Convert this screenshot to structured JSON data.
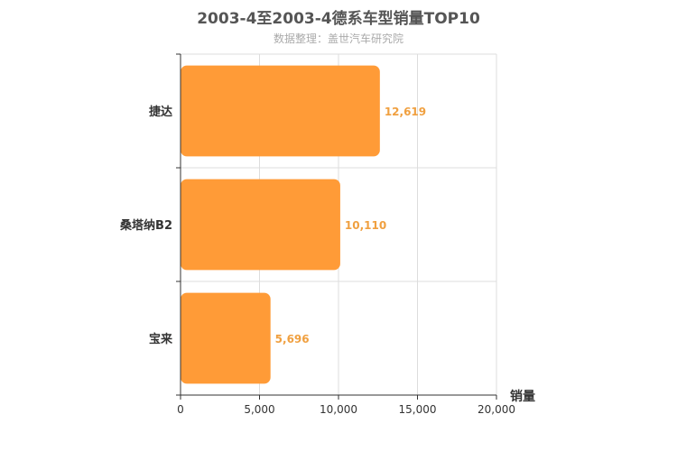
{
  "chart_data": {
    "type": "bar",
    "orientation": "horizontal",
    "title": "2003-4至2003-4德系车型销量TOP10",
    "subtitle": "数据整理：盖世汽车研究院",
    "categories": [
      "捷达",
      "桑塔纳B2",
      "宝来"
    ],
    "values": [
      12619,
      10110,
      5696
    ],
    "value_labels": [
      "12,619",
      "10,110",
      "5,696"
    ],
    "xlabel": "销量",
    "ylabel": "",
    "xlim": [
      0,
      20000
    ],
    "x_ticks": [
      0,
      5000,
      10000,
      15000,
      20000
    ],
    "x_tick_labels": [
      "0",
      "5,000",
      "10,000",
      "15,000",
      "20,000"
    ],
    "grid": true,
    "bar_color": "#ff9b37",
    "label_color": "#f0a040"
  }
}
